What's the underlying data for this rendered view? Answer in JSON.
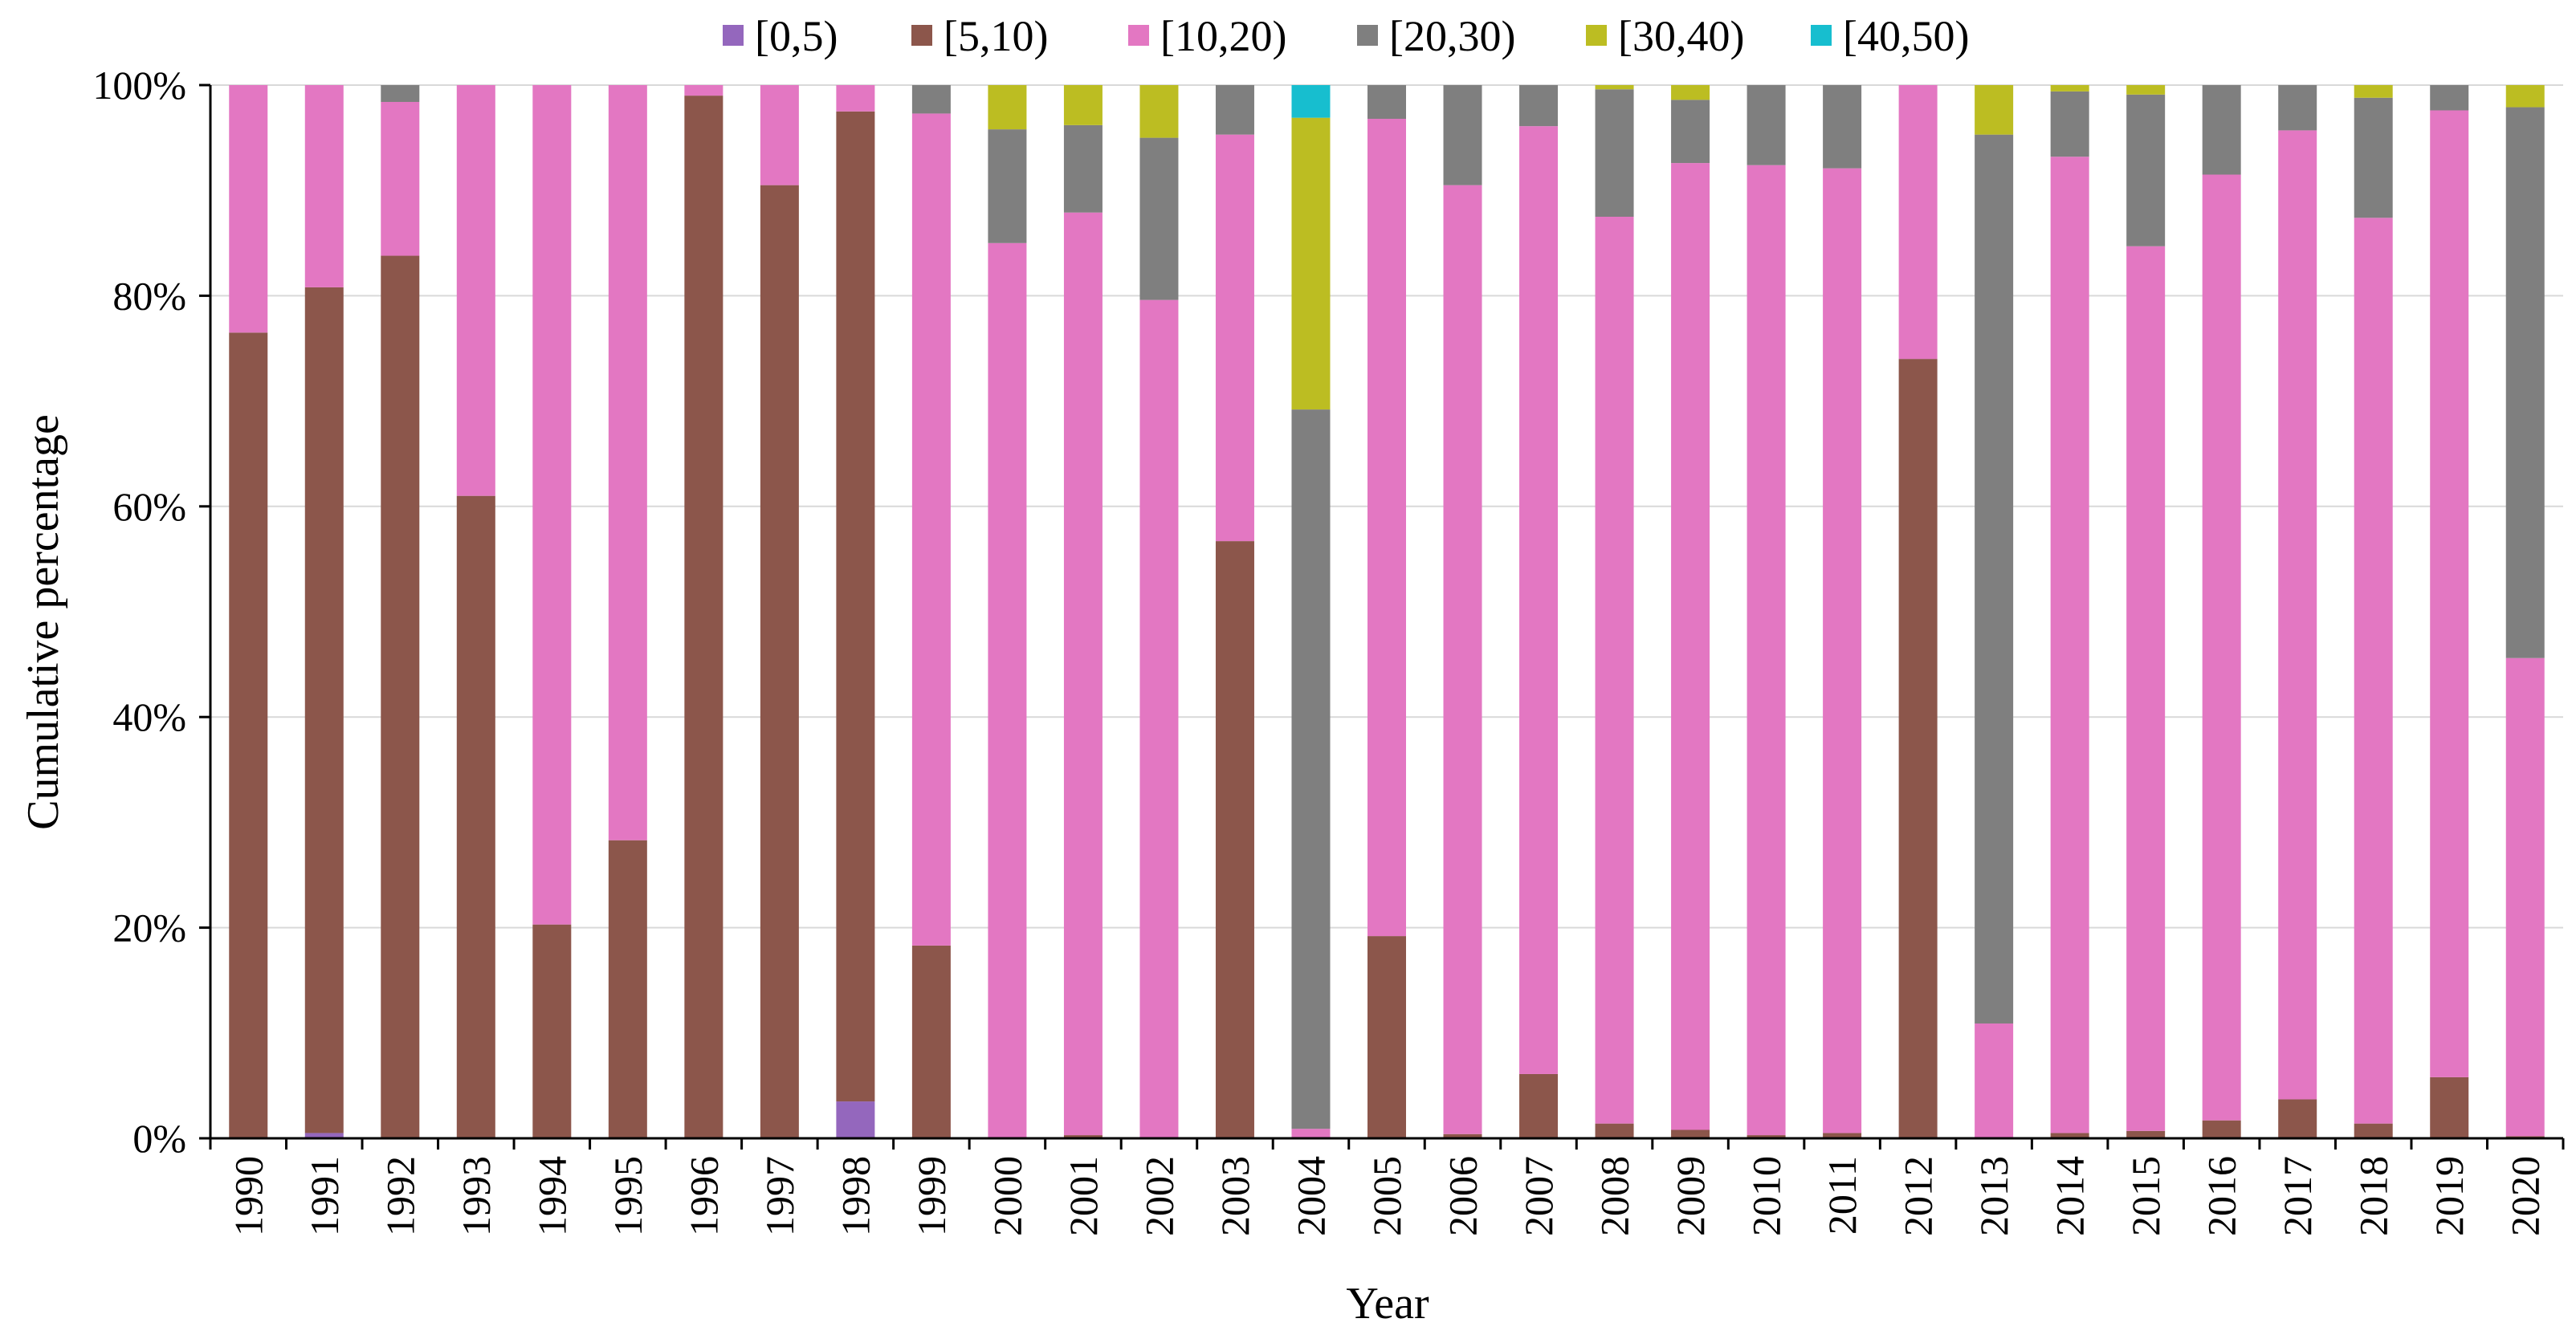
{
  "chart_data": {
    "type": "bar",
    "stacked": true,
    "xlabel": "Year",
    "ylabel": "Cumulative percentage",
    "ylim": [
      0,
      100
    ],
    "y_ticks": [
      "0%",
      "20%",
      "40%",
      "60%",
      "80%",
      "100%"
    ],
    "grid": true,
    "legend_position": "top",
    "categories": [
      "1990",
      "1991",
      "1992",
      "1993",
      "1994",
      "1995",
      "1996",
      "1997",
      "1998",
      "1999",
      "2000",
      "2001",
      "2002",
      "2003",
      "2004",
      "2005",
      "2006",
      "2007",
      "2008",
      "2009",
      "2010",
      "2011",
      "2012",
      "2013",
      "2014",
      "2015",
      "2016",
      "2017",
      "2018",
      "2019",
      "2020"
    ],
    "series": [
      {
        "name": "[0,5)",
        "color": "#9467bd",
        "values": [
          0,
          0.5,
          0,
          0,
          0,
          0,
          0,
          0,
          3.5,
          0,
          0,
          0,
          0,
          0,
          0,
          0,
          0,
          0,
          0,
          0,
          0,
          0,
          0,
          0,
          0,
          0,
          0,
          0,
          0,
          0,
          0
        ]
      },
      {
        "name": "[5,10)",
        "color": "#8c564b",
        "values": [
          76.5,
          80.3,
          83.8,
          61,
          20.3,
          28.3,
          99,
          90.5,
          94,
          18.3,
          0,
          0.3,
          0,
          56.7,
          0,
          19.2,
          0.4,
          6.1,
          1.4,
          0.8,
          0.3,
          0.5,
          74,
          0,
          0.5,
          0.7,
          1.7,
          3.7,
          1.4,
          5.8,
          0.2
        ]
      },
      {
        "name": "[10,20)",
        "color": "#e377c2",
        "values": [
          23.5,
          19.2,
          14.6,
          39,
          79.7,
          71.7,
          1,
          9.5,
          2.5,
          79,
          85,
          87.6,
          79.6,
          38.6,
          0.9,
          77.6,
          90.1,
          90,
          86.1,
          91.8,
          92.1,
          91.6,
          26,
          10.9,
          92.7,
          84,
          89.8,
          92,
          86,
          91.8,
          45.4
        ]
      },
      {
        "name": "[20,30)",
        "color": "#7f7f7f",
        "values": [
          0,
          0,
          1.6,
          0,
          0,
          0,
          0,
          0,
          0,
          2.7,
          10.8,
          8.3,
          15.4,
          4.7,
          68.3,
          3.2,
          9.5,
          3.9,
          12.1,
          6,
          7.6,
          7.9,
          0,
          84.4,
          6.2,
          14.4,
          8.5,
          4.3,
          11.4,
          2.4,
          52.3
        ]
      },
      {
        "name": "[30,40)",
        "color": "#bcbd22",
        "values": [
          0,
          0,
          0,
          0,
          0,
          0,
          0,
          0,
          0,
          0,
          4.2,
          3.8,
          5,
          0,
          27.7,
          0,
          0,
          0,
          0.4,
          1.4,
          0,
          0,
          0,
          4.7,
          0.6,
          0.9,
          0,
          0,
          1.2,
          0,
          2.1
        ]
      },
      {
        "name": "[40,50)",
        "color": "#17becf",
        "values": [
          0,
          0,
          0,
          0,
          0,
          0,
          0,
          0,
          0,
          0,
          0,
          0,
          0,
          0,
          3.1,
          0,
          0,
          0,
          0,
          0,
          0,
          0,
          0,
          0,
          0,
          0,
          0,
          0,
          0,
          0,
          0
        ]
      }
    ]
  }
}
